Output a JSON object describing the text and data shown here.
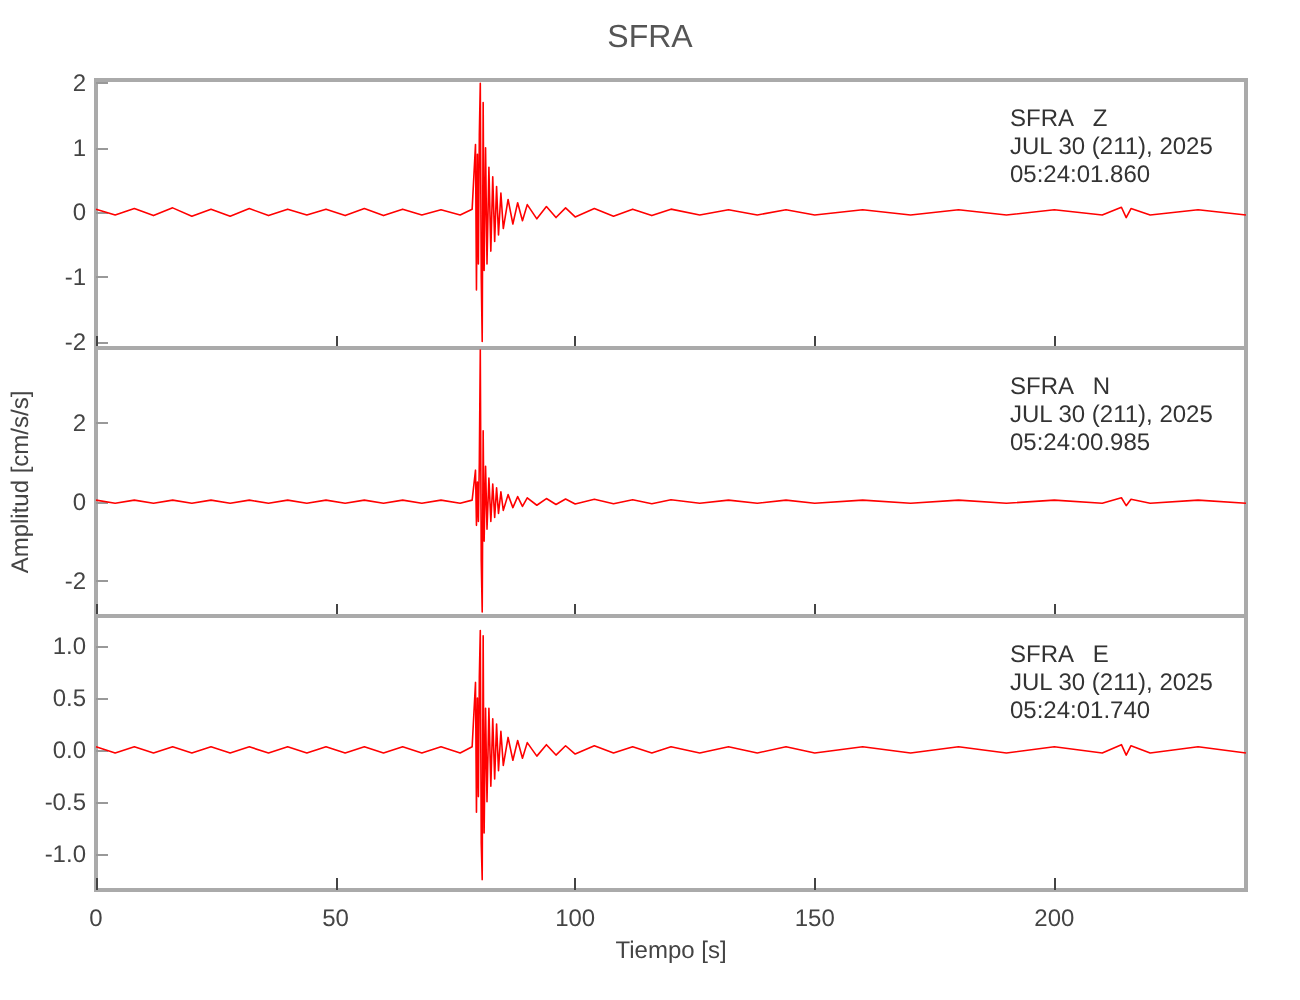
{
  "chart_data": [
    {
      "type": "line",
      "title": "SFRA",
      "annotations": [
        "SFRA   Z\nJUL 30 (211), 2025\n05:24:01.860"
      ],
      "tick_labels": "y",
      "grid": false,
      "marker": "none",
      "line_style": "solid",
      "x": [
        0,
        4,
        8,
        12,
        16,
        20,
        24,
        28,
        32,
        36,
        40,
        44,
        48,
        52,
        56,
        60,
        64,
        68,
        72,
        76,
        78.5,
        79.2,
        79.4,
        79.6,
        79.8,
        80.0,
        80.2,
        80.4,
        80.6,
        80.8,
        81.0,
        81.3,
        81.6,
        82.0,
        82.4,
        82.8,
        83.2,
        83.6,
        84.0,
        84.5,
        85,
        86,
        87,
        88,
        89,
        90,
        92,
        94,
        96,
        98,
        100,
        104,
        108,
        112,
        116,
        120,
        126,
        132,
        138,
        144,
        150,
        160,
        170,
        180,
        190,
        200,
        210,
        214,
        215,
        216,
        220,
        230,
        240
      ],
      "series": [
        {
          "color": "#ff0000",
          "values": [
            0.05,
            -0.04,
            0.06,
            -0.05,
            0.07,
            -0.06,
            0.05,
            -0.06,
            0.06,
            -0.05,
            0.05,
            -0.04,
            0.05,
            -0.05,
            0.06,
            -0.05,
            0.05,
            -0.04,
            0.04,
            -0.04,
            0.05,
            1.05,
            -1.2,
            0.9,
            -0.8,
            1.2,
            2.0,
            -1.0,
            -2.0,
            1.7,
            -0.9,
            1.0,
            -0.8,
            0.7,
            -0.6,
            0.55,
            -0.45,
            0.4,
            -0.35,
            0.3,
            -0.25,
            0.2,
            -0.18,
            0.15,
            -0.13,
            0.12,
            -0.1,
            0.09,
            -0.08,
            0.07,
            -0.07,
            0.06,
            -0.06,
            0.05,
            -0.05,
            0.05,
            -0.04,
            0.04,
            -0.04,
            0.04,
            -0.04,
            0.04,
            -0.04,
            0.04,
            -0.04,
            0.04,
            -0.04,
            0.08,
            -0.08,
            0.06,
            -0.04,
            0.04,
            -0.04
          ]
        }
      ],
      "xlim": [
        0,
        240
      ],
      "xticks": [
        0,
        50,
        100,
        150,
        200
      ],
      "ylim": [
        -2.1,
        2.05
      ],
      "yticks": [
        -2,
        -1,
        0,
        1,
        2
      ]
    },
    {
      "type": "line",
      "ylabel": "Amplitud [cm/s/s]",
      "annotations": [
        "SFRA   N\nJUL 30 (211), 2025\n05:24:00.985"
      ],
      "tick_labels": "y",
      "grid": false,
      "marker": "none",
      "line_style": "solid",
      "x": [
        0,
        4,
        8,
        12,
        16,
        20,
        24,
        28,
        32,
        36,
        40,
        44,
        48,
        52,
        56,
        60,
        64,
        68,
        72,
        76,
        78.5,
        79.2,
        79.4,
        79.6,
        79.8,
        80.0,
        80.2,
        80.4,
        80.6,
        80.8,
        81.0,
        81.3,
        81.6,
        82.0,
        82.4,
        82.8,
        83.2,
        83.6,
        84.0,
        84.5,
        85,
        86,
        87,
        88,
        89,
        90,
        92,
        94,
        96,
        98,
        100,
        104,
        108,
        112,
        116,
        120,
        126,
        132,
        138,
        144,
        150,
        160,
        170,
        180,
        190,
        200,
        210,
        214,
        215,
        216,
        220,
        230,
        240
      ],
      "series": [
        {
          "color": "#ff0000",
          "values": [
            0.04,
            -0.04,
            0.04,
            -0.04,
            0.04,
            -0.04,
            0.04,
            -0.04,
            0.04,
            -0.04,
            0.04,
            -0.04,
            0.04,
            -0.04,
            0.04,
            -0.04,
            0.04,
            -0.04,
            0.04,
            -0.04,
            0.04,
            0.8,
            -0.6,
            0.5,
            -0.5,
            1.0,
            3.85,
            -1.5,
            -2.8,
            1.8,
            -1.0,
            0.9,
            -0.7,
            0.6,
            -0.5,
            0.45,
            -0.4,
            0.35,
            -0.3,
            0.25,
            -0.22,
            0.18,
            -0.15,
            0.13,
            -0.12,
            0.1,
            -0.09,
            0.08,
            -0.07,
            0.07,
            -0.06,
            0.06,
            -0.05,
            0.05,
            -0.05,
            0.05,
            -0.04,
            0.04,
            -0.04,
            0.04,
            -0.04,
            0.04,
            -0.04,
            0.04,
            -0.04,
            0.04,
            -0.04,
            0.1,
            -0.1,
            0.06,
            -0.04,
            0.04,
            -0.04
          ]
        }
      ],
      "xlim": [
        0,
        240
      ],
      "xticks": [
        0,
        50,
        100,
        150,
        200
      ],
      "ylim": [
        -2.9,
        3.9
      ],
      "yticks": [
        -2,
        0,
        2
      ]
    },
    {
      "type": "line",
      "xlabel": "Tiempo [s]",
      "annotations": [
        "SFRA   E\nJUL 30 (211), 2025\n05:24:01.740"
      ],
      "grid": false,
      "marker": "none",
      "line_style": "solid",
      "x": [
        0,
        4,
        8,
        12,
        16,
        20,
        24,
        28,
        32,
        36,
        40,
        44,
        48,
        52,
        56,
        60,
        64,
        68,
        72,
        76,
        78.5,
        79.2,
        79.4,
        79.6,
        79.8,
        80.0,
        80.2,
        80.4,
        80.6,
        80.8,
        81.0,
        81.3,
        81.6,
        82.0,
        82.4,
        82.8,
        83.2,
        83.6,
        84.0,
        84.5,
        85,
        86,
        87,
        88,
        89,
        90,
        92,
        94,
        96,
        98,
        100,
        104,
        108,
        112,
        116,
        120,
        126,
        132,
        138,
        144,
        150,
        160,
        170,
        180,
        190,
        200,
        210,
        214,
        215,
        216,
        220,
        230,
        240
      ],
      "series": [
        {
          "color": "#ff0000",
          "values": [
            0.03,
            -0.03,
            0.03,
            -0.03,
            0.03,
            -0.03,
            0.03,
            -0.03,
            0.03,
            -0.03,
            0.03,
            -0.03,
            0.03,
            -0.03,
            0.03,
            -0.03,
            0.03,
            -0.03,
            0.03,
            -0.03,
            0.03,
            0.65,
            -0.6,
            0.5,
            -0.45,
            0.7,
            1.15,
            -0.9,
            -1.25,
            1.1,
            -0.8,
            0.4,
            -0.5,
            0.4,
            -0.35,
            0.3,
            -0.28,
            0.25,
            -0.2,
            0.18,
            -0.15,
            0.12,
            -0.1,
            0.09,
            -0.08,
            0.07,
            -0.06,
            0.05,
            -0.05,
            0.04,
            -0.04,
            0.04,
            -0.03,
            0.03,
            -0.03,
            0.03,
            -0.03,
            0.03,
            -0.03,
            0.03,
            -0.03,
            0.03,
            -0.03,
            0.03,
            -0.03,
            0.03,
            -0.03,
            0.05,
            -0.05,
            0.04,
            -0.03,
            0.03,
            -0.03
          ]
        }
      ],
      "xlim": [
        0,
        240
      ],
      "xticks": [
        0,
        50,
        100,
        150,
        200
      ],
      "ylim": [
        -1.35,
        1.29
      ],
      "yticks": [
        {
          "value": -1,
          "label": "-1.0"
        },
        {
          "value": -0.5,
          "label": "-0.5"
        },
        {
          "value": 0,
          "label": "0.0"
        },
        {
          "value": 0.5,
          "label": "0.5"
        },
        {
          "value": 1,
          "label": "1.0"
        }
      ]
    }
  ]
}
